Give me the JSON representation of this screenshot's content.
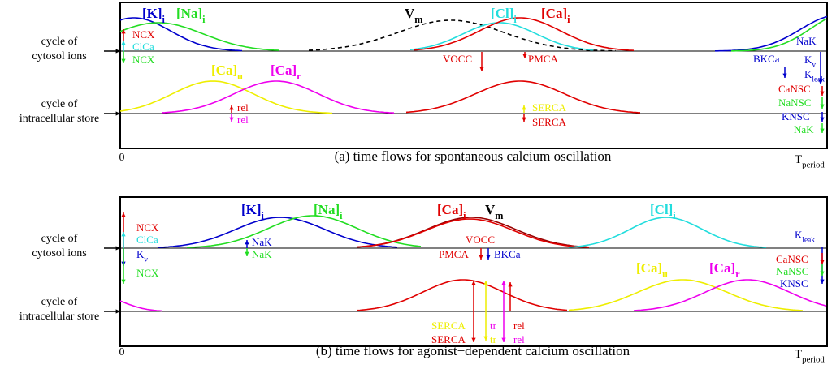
{
  "panels": [
    {
      "caption": "(a) time flows for spontaneous calcium oscillation",
      "row_labels": [
        [
          "cycle of",
          "cytosol ions"
        ],
        [
          "cycle of",
          "intracellular store"
        ]
      ],
      "time_start": "0",
      "time_end": {
        "text": "T",
        "sub": "period"
      },
      "species": [
        {
          "text": "[K]",
          "sub": "i"
        },
        {
          "text": "[Na]",
          "sub": "i"
        },
        {
          "text": "V",
          "sub": "m"
        },
        {
          "text": "[Cl]",
          "sub": "i"
        },
        {
          "text": "[Ca]",
          "sub": "i"
        },
        {
          "text": "[Ca]",
          "sub": "u"
        },
        {
          "text": "[Ca]",
          "sub": "r"
        }
      ],
      "fluxes": [
        "NCX",
        "ClCa",
        "NCX",
        "VOCC",
        "PMCA",
        "NaK",
        {
          "text": "K",
          "sub": "v"
        },
        "BKCa",
        {
          "text": "K",
          "sub": "leak"
        },
        "CaNSC",
        "NaNSC",
        "KNSC",
        "NaK",
        "rel",
        "rel",
        "SERCA",
        "SERCA"
      ]
    },
    {
      "caption": "(b) time flows for agonist−dependent calcium oscillation",
      "row_labels": [
        [
          "cycle of",
          "cytosol ions"
        ],
        [
          "cycle of",
          "intracellular store"
        ]
      ],
      "time_start": "0",
      "time_end": {
        "text": "T",
        "sub": "period"
      },
      "species": [
        {
          "text": "[K]",
          "sub": "i"
        },
        {
          "text": "[Na]",
          "sub": "i"
        },
        {
          "text": "[Ca]",
          "sub": "i"
        },
        {
          "text": "V",
          "sub": "m"
        },
        {
          "text": "[Cl]",
          "sub": "i"
        },
        {
          "text": "[Ca]",
          "sub": "u"
        },
        {
          "text": "[Ca]",
          "sub": "r"
        }
      ],
      "fluxes": [
        "NCX",
        "ClCa",
        {
          "text": "K",
          "sub": "v"
        },
        "NCX",
        "NaK",
        "NaK",
        "VOCC",
        "PMCA",
        "BKCa",
        {
          "text": "K",
          "sub": "leak"
        },
        "CaNSC",
        "NaNSC",
        "KNSC",
        "SERCA",
        "tr",
        "SERCA",
        "tr",
        "rel",
        "rel"
      ]
    }
  ]
}
